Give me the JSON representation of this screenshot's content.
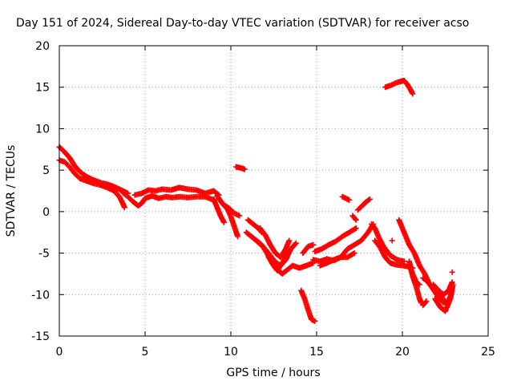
{
  "chart_data": {
    "type": "scatter",
    "title": "Day 151 of 2024, Sidereal Day-to-day VTEC variation (SDTVAR) for receiver acso",
    "xlabel": "GPS time / hours",
    "ylabel": "SDTVAR / TECUs",
    "xlim": [
      0,
      25
    ],
    "ylim": [
      -15,
      20
    ],
    "xticks": [
      "0",
      "5",
      "10",
      "15",
      "20",
      "25"
    ],
    "yticks": [
      "20",
      "15",
      "10",
      "5",
      "0",
      "-5",
      "-10",
      "-15"
    ],
    "grid": true,
    "marker": "plus",
    "color": "#ff0000",
    "series": [
      {
        "name": "SDTVAR",
        "segments": [
          [
            [
              0,
              7.8
            ],
            [
              0.3,
              7.2
            ],
            [
              0.6,
              6.5
            ],
            [
              0.9,
              5.5
            ],
            [
              1.2,
              4.8
            ],
            [
              1.6,
              4.2
            ],
            [
              2.0,
              3.8
            ],
            [
              2.4,
              3.5
            ],
            [
              2.8,
              3.3
            ],
            [
              3.2,
              3.0
            ],
            [
              3.6,
              2.6
            ],
            [
              4.0,
              2.2
            ]
          ],
          [
            [
              0,
              6.2
            ],
            [
              0.3,
              6.0
            ],
            [
              0.6,
              5.4
            ],
            [
              0.9,
              4.6
            ],
            [
              1.2,
              4.0
            ],
            [
              1.6,
              3.7
            ],
            [
              2.0,
              3.4
            ],
            [
              2.4,
              3.2
            ],
            [
              2.8,
              2.9
            ],
            [
              3.2,
              2.5
            ],
            [
              3.5,
              1.8
            ],
            [
              3.7,
              1.0
            ],
            [
              3.8,
              0.5
            ]
          ],
          [
            [
              3.7,
              2.3
            ],
            [
              4.0,
              1.8
            ],
            [
              4.3,
              1.2
            ],
            [
              4.6,
              0.7
            ],
            [
              4.8,
              1.0
            ],
            [
              5.0,
              1.6
            ],
            [
              5.4,
              1.9
            ],
            [
              5.8,
              1.6
            ],
            [
              6.2,
              1.8
            ],
            [
              6.6,
              1.7
            ],
            [
              7.0,
              1.8
            ],
            [
              7.5,
              1.7
            ],
            [
              8.0,
              1.8
            ],
            [
              8.5,
              1.8
            ],
            [
              9.0,
              1.4
            ]
          ],
          [
            [
              4.4,
              2.0
            ],
            [
              4.8,
              2.2
            ],
            [
              5.2,
              2.6
            ],
            [
              5.6,
              2.5
            ],
            [
              6.0,
              2.7
            ],
            [
              6.5,
              2.6
            ],
            [
              7.0,
              2.9
            ],
            [
              7.5,
              2.7
            ],
            [
              8.0,
              2.6
            ],
            [
              8.5,
              2.2
            ],
            [
              9.0,
              2.5
            ],
            [
              9.3,
              2.0
            ]
          ],
          [
            [
              9.0,
              1.5
            ],
            [
              9.2,
              0.5
            ],
            [
              9.4,
              -0.5
            ],
            [
              9.6,
              -1.3
            ]
          ],
          [
            [
              9.2,
              1.9
            ],
            [
              9.5,
              1.0
            ],
            [
              9.8,
              0.3
            ],
            [
              10.0,
              -0.6
            ],
            [
              10.2,
              -1.8
            ],
            [
              10.4,
              -3.0
            ]
          ],
          [
            [
              9.6,
              0.8
            ],
            [
              9.9,
              0.4
            ],
            [
              10.2,
              -0.2
            ],
            [
              10.5,
              -0.5
            ]
          ],
          [
            [
              10.3,
              5.4
            ],
            [
              10.5,
              5.3
            ],
            [
              10.7,
              5.2
            ],
            [
              10.8,
              5.1
            ]
          ],
          [
            [
              11.0,
              -1.0
            ],
            [
              11.3,
              -1.5
            ],
            [
              11.6,
              -2.0
            ],
            [
              11.8,
              -2.5
            ]
          ],
          [
            [
              10.9,
              -2.5
            ],
            [
              11.2,
              -3.0
            ],
            [
              11.5,
              -3.5
            ],
            [
              11.8,
              -4.0
            ],
            [
              12.1,
              -5.0
            ],
            [
              12.4,
              -6.2
            ],
            [
              12.7,
              -7.1
            ],
            [
              13.0,
              -6.2
            ],
            [
              13.3,
              -5.1
            ]
          ],
          [
            [
              11.2,
              -3.0
            ],
            [
              11.6,
              -3.7
            ],
            [
              12.0,
              -4.5
            ],
            [
              12.3,
              -5.3
            ],
            [
              12.6,
              -6.1
            ],
            [
              12.9,
              -6.5
            ],
            [
              13.2,
              -5.8
            ],
            [
              13.5,
              -4.5
            ],
            [
              13.8,
              -3.8
            ]
          ],
          [
            [
              11.7,
              -2.0
            ],
            [
              12.0,
              -2.8
            ],
            [
              12.3,
              -4.0
            ],
            [
              12.6,
              -5.0
            ],
            [
              12.9,
              -5.5
            ],
            [
              13.2,
              -4.5
            ],
            [
              13.4,
              -3.5
            ]
          ],
          [
            [
              12.2,
              -5.5
            ],
            [
              12.6,
              -6.8
            ],
            [
              13.0,
              -7.5
            ],
            [
              13.3,
              -7.0
            ],
            [
              13.6,
              -6.5
            ],
            [
              14.0,
              -6.8
            ],
            [
              14.4,
              -6.5
            ],
            [
              14.8,
              -6.2
            ]
          ],
          [
            [
              14.2,
              -5.0
            ],
            [
              14.5,
              -4.2
            ],
            [
              14.8,
              -4.0
            ]
          ],
          [
            [
              14.1,
              -9.5
            ],
            [
              14.3,
              -10.5
            ],
            [
              14.5,
              -11.8
            ],
            [
              14.7,
              -13.0
            ],
            [
              14.9,
              -13.2
            ]
          ],
          [
            [
              14.8,
              -5.8
            ],
            [
              15.2,
              -6.0
            ],
            [
              15.6,
              -5.7
            ],
            [
              16.0,
              -5.9
            ],
            [
              16.4,
              -5.5
            ],
            [
              16.8,
              -5.5
            ],
            [
              17.2,
              -5.0
            ]
          ],
          [
            [
              14.9,
              -4.8
            ],
            [
              15.3,
              -4.5
            ],
            [
              15.7,
              -4.0
            ],
            [
              16.1,
              -3.6
            ],
            [
              16.5,
              -3.0
            ],
            [
              16.9,
              -2.5
            ],
            [
              17.3,
              -2.0
            ]
          ],
          [
            [
              15.2,
              -6.5
            ],
            [
              15.6,
              -6.2
            ],
            [
              16.0,
              -5.8
            ],
            [
              16.4,
              -5.5
            ],
            [
              16.8,
              -4.5
            ],
            [
              17.2,
              -4.0
            ],
            [
              17.6,
              -3.5
            ],
            [
              18.0,
              -2.5
            ],
            [
              18.3,
              -1.5
            ]
          ],
          [
            [
              16.5,
              1.8
            ],
            [
              16.7,
              1.6
            ],
            [
              16.9,
              1.4
            ]
          ],
          [
            [
              17.4,
              0.2
            ],
            [
              17.7,
              0.8
            ],
            [
              17.9,
              1.2
            ],
            [
              18.1,
              1.5
            ]
          ],
          [
            [
              17.1,
              -0.5
            ],
            [
              17.3,
              -1.0
            ]
          ],
          [
            [
              18.2,
              -1.5
            ],
            [
              18.4,
              -2.0
            ],
            [
              18.6,
              -3.0
            ],
            [
              18.9,
              -4.2
            ],
            [
              19.3,
              -5.3
            ],
            [
              19.7,
              -5.8
            ],
            [
              20.1,
              -6.0
            ]
          ],
          [
            [
              18.4,
              -3.5
            ],
            [
              18.7,
              -4.3
            ],
            [
              19.0,
              -5.5
            ],
            [
              19.3,
              -6.2
            ],
            [
              19.6,
              -6.4
            ],
            [
              20.0,
              -6.5
            ],
            [
              20.3,
              -6.6
            ],
            [
              20.6,
              -6.8
            ]
          ],
          [
            [
              19.0,
              15.0
            ],
            [
              19.3,
              15.2
            ],
            [
              19.6,
              15.5
            ],
            [
              19.9,
              15.7
            ],
            [
              20.1,
              15.8
            ],
            [
              20.3,
              15.3
            ],
            [
              20.5,
              14.6
            ],
            [
              20.6,
              14.2
            ]
          ],
          [
            [
              19.8,
              -1.0
            ],
            [
              20.1,
              -2.5
            ],
            [
              20.4,
              -4.0
            ],
            [
              20.7,
              -5.0
            ],
            [
              21.0,
              -6.5
            ],
            [
              21.3,
              -7.5
            ],
            [
              21.6,
              -8.8
            ],
            [
              22.0,
              -10.0
            ],
            [
              22.4,
              -11.0
            ]
          ],
          [
            [
              20.4,
              -6.5
            ],
            [
              20.6,
              -7.5
            ],
            [
              20.8,
              -8.5
            ],
            [
              21.0,
              -8.8
            ]
          ],
          [
            [
              21.2,
              -8.0
            ],
            [
              21.5,
              -8.5
            ],
            [
              21.8,
              -9.3
            ],
            [
              22.0,
              -9.6
            ],
            [
              22.3,
              -10.3
            ],
            [
              22.6,
              -11.2
            ],
            [
              22.8,
              -10.2
            ],
            [
              22.9,
              -9.0
            ]
          ],
          [
            [
              21.8,
              -8.8
            ],
            [
              22.1,
              -9.5
            ],
            [
              22.4,
              -10.0
            ],
            [
              22.7,
              -9.5
            ],
            [
              22.9,
              -8.5
            ]
          ],
          [
            [
              21.9,
              -10.5
            ],
            [
              22.2,
              -11.5
            ],
            [
              22.5,
              -12.0
            ],
            [
              22.8,
              -10.5
            ],
            [
              22.95,
              -8.8
            ]
          ],
          [
            [
              22.9,
              -7.3
            ]
          ],
          [
            [
              20.4,
              -6.0
            ],
            [
              20.6,
              -7.8
            ],
            [
              20.8,
              -9.0
            ],
            [
              21.0,
              -10.5
            ],
            [
              21.1,
              -11.0
            ]
          ],
          [
            [
              21.2,
              -11.3
            ],
            [
              21.4,
              -10.8
            ]
          ],
          [
            [
              19.4,
              -3.5
            ]
          ]
        ]
      }
    ]
  }
}
